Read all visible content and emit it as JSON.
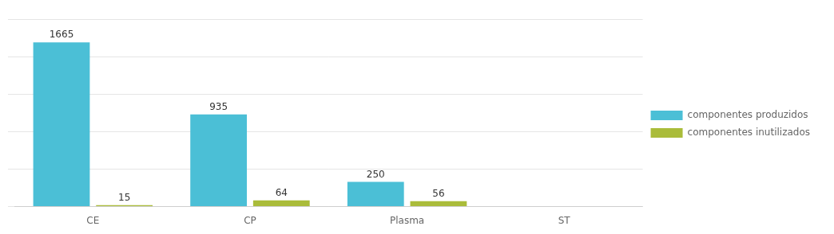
{
  "chart_data": {
    "type": "bar",
    "categories": [
      "CE",
      "CP",
      "Plasma",
      "ST"
    ],
    "series": [
      {
        "name": "componentes produzidos",
        "color": "#4BBFD6",
        "values": [
          1665,
          935,
          250,
          0
        ],
        "value_labels": [
          "1665",
          "935",
          "250",
          null
        ]
      },
      {
        "name": "componentes inutilizados",
        "color": "#AABC3A",
        "values": [
          15,
          64,
          56,
          0
        ],
        "value_labels": [
          "15",
          "64",
          "56",
          null
        ]
      }
    ],
    "ylim": [
      0,
      1900
    ],
    "yticks": [
      0,
      380,
      760,
      1140,
      1520,
      1900
    ],
    "grid": true,
    "legend": "right",
    "data_labels": true,
    "tick_labels": "x"
  }
}
